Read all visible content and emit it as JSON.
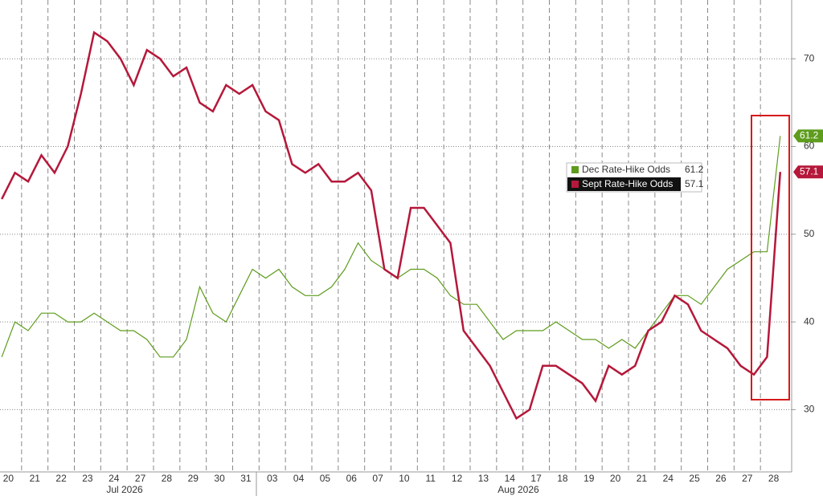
{
  "chart_data": {
    "type": "line",
    "categories": [
      "20",
      null,
      "21",
      null,
      "22",
      null,
      "23",
      null,
      "24",
      null,
      "27",
      null,
      "28",
      null,
      "29",
      null,
      "30",
      null,
      "31",
      null,
      "03",
      null,
      "04",
      null,
      "05",
      null,
      "06",
      null,
      "07",
      null,
      "10",
      null,
      "11",
      null,
      "12",
      null,
      "13",
      null,
      "14",
      null,
      "17",
      null,
      "18",
      null,
      "19",
      null,
      "20",
      null,
      "21",
      null,
      "24",
      null,
      "25",
      null,
      "26",
      null,
      "27",
      null,
      "28",
      null
    ],
    "month_labels": [
      "Jul 2026",
      "Aug 2026"
    ],
    "series": [
      {
        "name": "Dec Rate-Hike Odds",
        "color": "#5e9c1d",
        "values": [
          36,
          40,
          39,
          41,
          41,
          40,
          40,
          41,
          40,
          39,
          39,
          38,
          36,
          36,
          38,
          44,
          41,
          40,
          43,
          46,
          45,
          46,
          44,
          43,
          43,
          44,
          46,
          49,
          47,
          46,
          45,
          46,
          46,
          45,
          43,
          42,
          42,
          40,
          38,
          39,
          39,
          39,
          40,
          39,
          38,
          38,
          37,
          38,
          37,
          39,
          41,
          43,
          43,
          42,
          44,
          46,
          47,
          48,
          48,
          61.2
        ]
      },
      {
        "name": "Sept Rate-Hike Odds",
        "color": "#b5183a",
        "values": [
          54,
          57,
          56,
          59,
          57,
          60,
          66,
          73,
          72,
          70,
          67,
          71,
          70,
          68,
          69,
          65,
          64,
          67,
          66,
          67,
          64,
          63,
          58,
          57,
          58,
          56,
          56,
          57,
          55,
          46,
          45,
          53,
          53,
          51,
          49,
          39,
          37,
          35,
          32,
          29,
          30,
          35,
          35,
          34,
          33,
          31,
          35,
          34,
          35,
          39,
          40,
          43,
          42,
          39,
          38,
          37,
          35,
          34,
          36,
          57.1
        ]
      }
    ],
    "ylim": [
      22.9,
      76.7
    ],
    "yticks": [
      30,
      40,
      50,
      60,
      70
    ],
    "grid": true
  }
}
